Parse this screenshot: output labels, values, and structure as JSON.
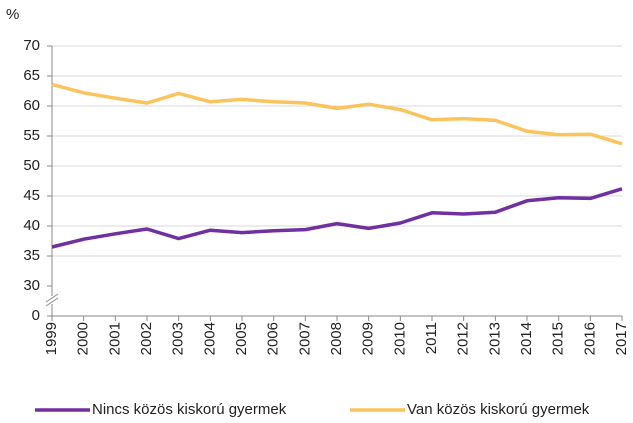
{
  "chart_data": {
    "type": "line",
    "y_unit": "%",
    "categories": [
      "1999",
      "2000",
      "2001",
      "2002",
      "2003",
      "2004",
      "2005",
      "2006",
      "2007",
      "2008",
      "2009",
      "2010",
      "2011",
      "2012",
      "2013",
      "2014",
      "2015",
      "2016",
      "2017"
    ],
    "series": [
      {
        "name": "Nincs közös kiskorú gyermek",
        "color": "#7030a0",
        "values": [
          36.5,
          37.8,
          38.7,
          39.5,
          37.9,
          39.3,
          38.9,
          39.2,
          39.4,
          40.4,
          39.6,
          40.5,
          42.2,
          42.0,
          42.3,
          44.2,
          44.7,
          44.6,
          46.2
        ]
      },
      {
        "name": "Van közös kiskorú gyermek",
        "color": "#fbc35b",
        "values": [
          63.6,
          62.2,
          61.3,
          60.5,
          62.1,
          60.7,
          61.1,
          60.7,
          60.5,
          59.6,
          60.3,
          59.4,
          57.7,
          57.9,
          57.6,
          55.8,
          55.2,
          55.3,
          53.7
        ]
      }
    ],
    "ylim": [
      0,
      70
    ],
    "axis_break": [
      0,
      30
    ],
    "yticks": [
      0,
      30,
      35,
      40,
      45,
      50,
      55,
      60,
      65,
      70
    ],
    "grid": true,
    "legend": "bottom"
  }
}
